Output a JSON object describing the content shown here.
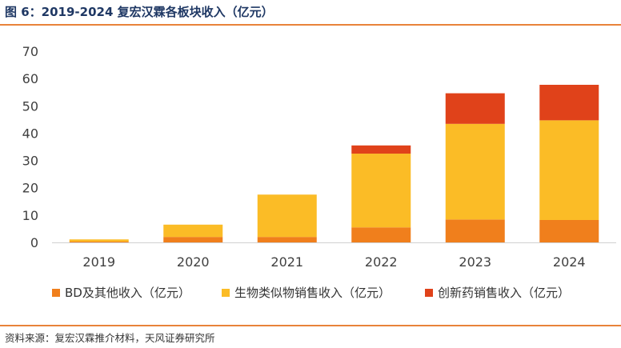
{
  "header": {
    "title": "图 6：2019-2024 复宏汉霖各板块收入（亿元）"
  },
  "footer": {
    "source": "资料来源：复宏汉霖推介材料，天风证券研究所"
  },
  "chart_data": {
    "type": "bar",
    "stacked": true,
    "title": "",
    "xlabel": "",
    "ylabel": "",
    "ylim": [
      0,
      70
    ],
    "yticks": [
      0,
      10,
      20,
      30,
      40,
      50,
      60,
      70
    ],
    "grid": false,
    "legend_position": "bottom",
    "categories": [
      "2019",
      "2020",
      "2021",
      "2022",
      "2023",
      "2024"
    ],
    "series": [
      {
        "name": "BD及其他收入（亿元）",
        "color": "#f07f1c",
        "values": [
          0.3,
          2.0,
          2.0,
          5.5,
          8.4,
          8.2
        ]
      },
      {
        "name": "生物类似物销售收入（亿元）",
        "color": "#fbbc26",
        "values": [
          0.8,
          4.5,
          15.5,
          27.0,
          35.0,
          36.5
        ]
      },
      {
        "name": "创新药销售收入（亿元）",
        "color": "#e0421a",
        "values": [
          0,
          0,
          0,
          3.0,
          11.2,
          13.0
        ]
      }
    ]
  }
}
